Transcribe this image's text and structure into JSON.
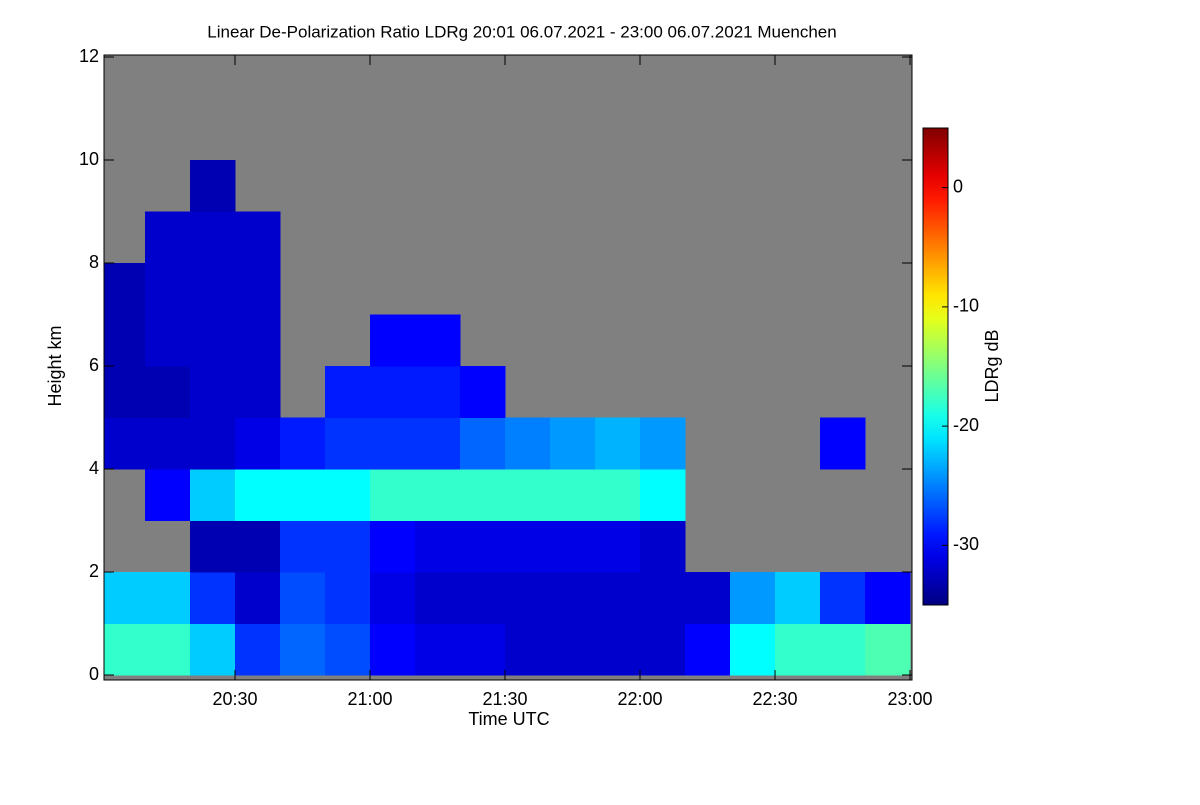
{
  "chart_data": {
    "type": "heatmap",
    "title": "Linear De-Polarization Ratio LDRg   20:01 06.07.2021 - 23:00 06.07.2021 Muenchen",
    "x_label": "Time UTC",
    "y_label": "Height km",
    "colorbar_label": "LDRg dB",
    "colormap": "jet",
    "background": "#808080",
    "x": [
      1205,
      1215,
      1225,
      1235,
      1245,
      1255,
      1265,
      1275,
      1285,
      1295,
      1305,
      1315,
      1325,
      1335,
      1345,
      1355,
      1365,
      1375
    ],
    "y": [
      0.5,
      1.5,
      2.5,
      3.5,
      4.5,
      5.5,
      6.5,
      7.5,
      8.5,
      9.5,
      10.5,
      11.5
    ],
    "z": [
      [
        -18,
        -18,
        -22,
        -28,
        -26,
        -27,
        -30,
        -31,
        -31,
        -32,
        -32,
        -32,
        -32,
        -30,
        -20,
        -18,
        -18,
        -17
      ],
      [
        -22,
        -22,
        -28,
        -32,
        -27,
        -28,
        -31,
        -32,
        -32,
        -32,
        -32,
        -32,
        -32,
        -32,
        -24,
        -22,
        -28,
        -30
      ],
      [
        null,
        null,
        -33,
        -33,
        -28,
        -28,
        -30,
        -31,
        -31,
        -31,
        -31,
        -31,
        -32,
        null,
        null,
        null,
        null,
        null
      ],
      [
        null,
        -30,
        -22,
        -20,
        -20,
        -20,
        -18,
        -18,
        -18,
        -18,
        -18,
        -18,
        -20,
        null,
        null,
        null,
        null,
        null
      ],
      [
        -32,
        -32,
        -32,
        -31,
        -29,
        -28,
        -28,
        -28,
        -26,
        -25,
        -24,
        -23,
        -24,
        null,
        null,
        null,
        -30,
        null
      ],
      [
        -33,
        -33,
        -32,
        -32,
        null,
        -29,
        -29,
        -29,
        -30,
        null,
        null,
        null,
        null,
        null,
        null,
        null,
        null,
        null
      ],
      [
        -33,
        -32,
        -32,
        -32,
        null,
        null,
        -30,
        -30,
        null,
        null,
        null,
        null,
        null,
        null,
        null,
        null,
        null,
        null
      ],
      [
        -33,
        -32,
        -32,
        -32,
        null,
        null,
        null,
        null,
        null,
        null,
        null,
        null,
        null,
        null,
        null,
        null,
        null,
        null
      ],
      [
        null,
        -32,
        -32,
        -32,
        null,
        null,
        null,
        null,
        null,
        null,
        null,
        null,
        null,
        null,
        null,
        null,
        null,
        null
      ],
      [
        null,
        null,
        -33,
        null,
        null,
        null,
        null,
        null,
        null,
        null,
        null,
        null,
        null,
        null,
        null,
        null,
        null,
        null
      ],
      [
        null,
        null,
        null,
        null,
        null,
        null,
        null,
        null,
        null,
        null,
        null,
        null,
        null,
        null,
        null,
        null,
        null,
        null
      ],
      [
        null,
        null,
        null,
        null,
        null,
        null,
        null,
        null,
        null,
        null,
        null,
        null,
        null,
        null,
        null,
        null,
        null,
        null
      ]
    ],
    "xlim": [
      1201,
      1380
    ],
    "xticks": [
      {
        "value": 1230,
        "label": "20:30"
      },
      {
        "value": 1260,
        "label": "21:00"
      },
      {
        "value": 1290,
        "label": "21:30"
      },
      {
        "value": 1320,
        "label": "22:00"
      },
      {
        "value": 1350,
        "label": "22:30"
      },
      {
        "value": 1380,
        "label": "23:00"
      }
    ],
    "ylim": [
      0,
      12
    ],
    "yticks": [
      0,
      2,
      4,
      6,
      8,
      10,
      12
    ],
    "zlim": [
      -35,
      5
    ],
    "zticks": [
      -30,
      -20,
      -10,
      0
    ]
  }
}
